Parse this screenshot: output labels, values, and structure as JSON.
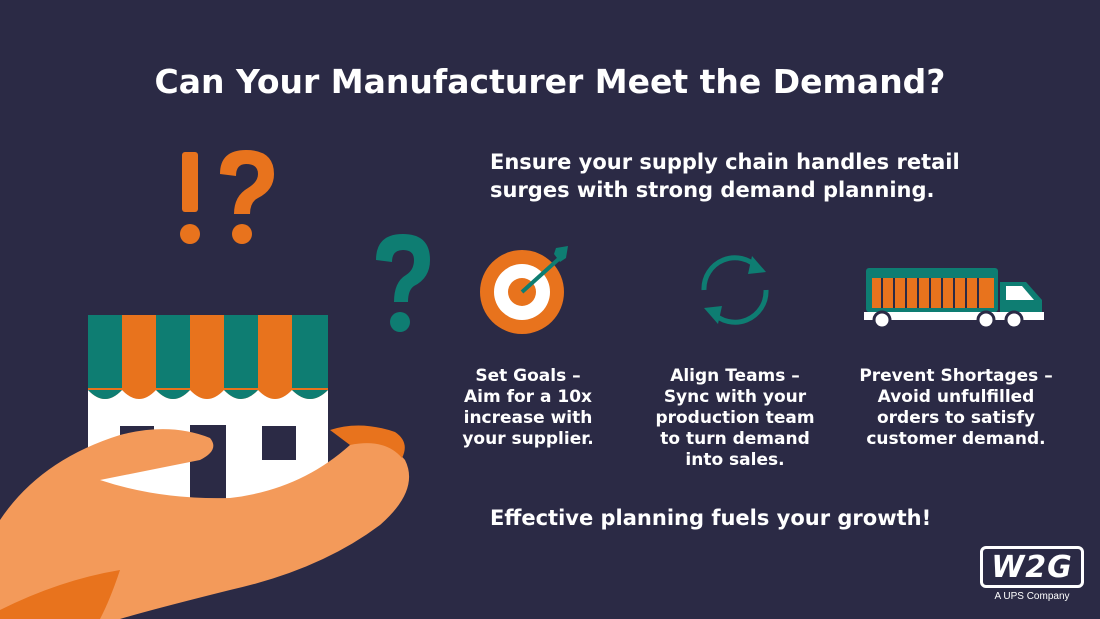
{
  "title": "Can Your Manufacturer Meet the Demand?",
  "subtitle": [
    "Ensure your supply chain handles retail",
    "surges with strong demand planning."
  ],
  "features": [
    {
      "icon": "target-icon",
      "lines": [
        "Set Goals –",
        "Aim for a 10x",
        "increase with",
        "your supplier."
      ]
    },
    {
      "icon": "sync-icon",
      "lines": [
        "Align Teams –",
        "Sync with your",
        "production team",
        "to turn demand",
        "into sales."
      ]
    },
    {
      "icon": "truck-icon",
      "lines": [
        "Prevent Shortages –",
        "Avoid unfulfilled",
        "orders to satisfy",
        "customer demand."
      ]
    }
  ],
  "footer": "Effective planning fuels your growth!",
  "logo": {
    "mark": "W2G",
    "tagline": "A UPS Company"
  },
  "colors": {
    "background": "#2b2a45",
    "orange": "#e8731d",
    "teal": "#0e7d72",
    "hand": "#f39a5a",
    "white": "#ffffff"
  }
}
